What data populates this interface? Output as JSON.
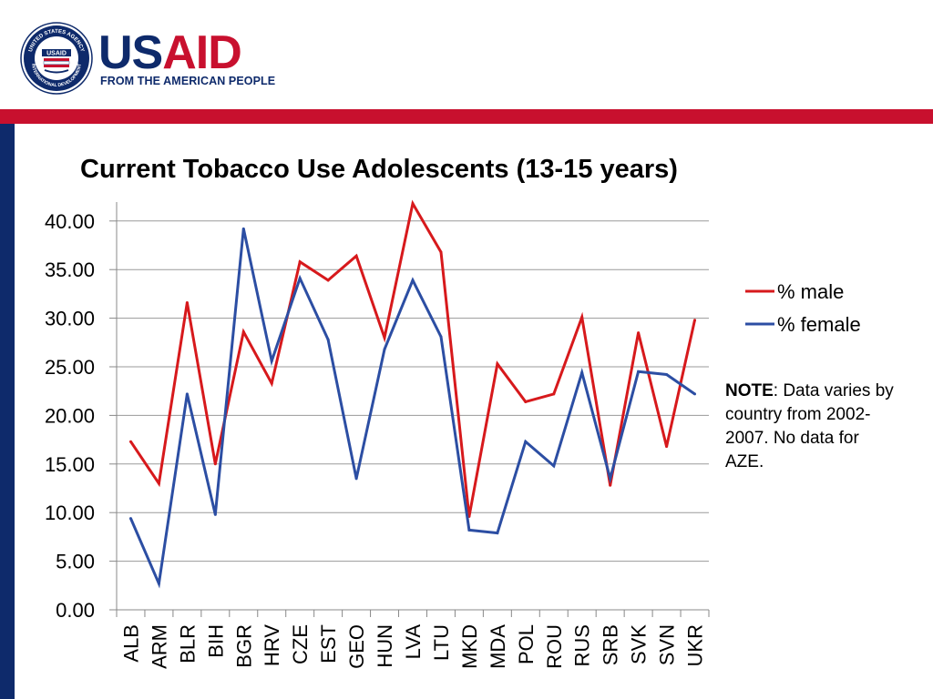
{
  "brand": {
    "seal_text_top": "UNITED STATES AGENCY",
    "seal_text_bottom": "INTERNATIONAL DEVELOPMENT",
    "seal_center": "USAID",
    "wordmark_part1": "US",
    "wordmark_part2": "AID",
    "tagline": "FROM THE AMERICAN PEOPLE",
    "colors": {
      "navy": "#0e2a6b",
      "red": "#c8102e"
    }
  },
  "slide": {
    "title": "Current Tobacco Use Adolescents (13-15 years)"
  },
  "note": {
    "label": "NOTE",
    "text": ": Data varies by country from 2002-2007. No data for AZE."
  },
  "chart_data": {
    "type": "line",
    "title": "",
    "xlabel": "",
    "ylabel": "",
    "ylim": [
      0,
      42
    ],
    "yticks": [
      "0.00",
      "5.00",
      "10.00",
      "15.00",
      "20.00",
      "25.00",
      "30.00",
      "35.00",
      "40.00"
    ],
    "categories": [
      "ALB",
      "ARM",
      "BLR",
      "BIH",
      "BGR",
      "HRV",
      "CZE",
      "EST",
      "GEO",
      "HUN",
      "LVA",
      "LTU",
      "MKD",
      "MDA",
      "POL",
      "ROU",
      "RUS",
      "SRB",
      "SVK",
      "SVN",
      "UKR"
    ],
    "series": [
      {
        "name": "% male",
        "color": "#d7191c",
        "values": [
          17.3,
          13.0,
          31.6,
          15.0,
          28.6,
          23.3,
          35.8,
          33.9,
          36.4,
          28.0,
          41.8,
          36.8,
          9.6,
          25.3,
          21.4,
          22.2,
          30.1,
          12.8,
          28.5,
          16.8,
          29.8
        ]
      },
      {
        "name": "% female",
        "color": "#2c4ea3",
        "values": [
          9.4,
          2.7,
          22.2,
          9.8,
          39.2,
          25.6,
          34.1,
          27.8,
          13.5,
          26.8,
          33.9,
          28.1,
          8.2,
          7.9,
          17.3,
          14.8,
          24.4,
          13.5,
          24.5,
          24.2,
          22.2
        ]
      }
    ],
    "grid": true,
    "legend": "right"
  }
}
